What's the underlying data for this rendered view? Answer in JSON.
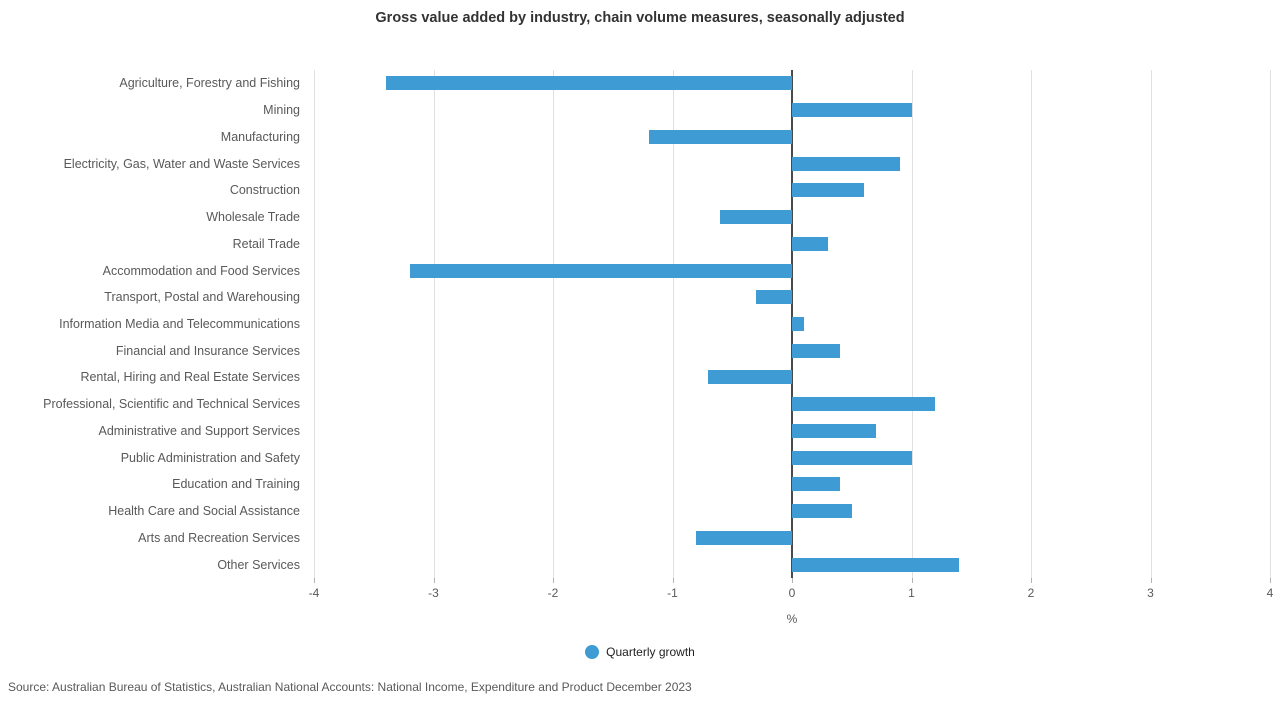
{
  "chart_data": {
    "type": "bar",
    "orientation": "horizontal",
    "title": "Gross value added by industry, chain volume measures, seasonally adjusted",
    "xlabel": "%",
    "xlim": [
      -4,
      4
    ],
    "xticks": [
      -4,
      -3,
      -2,
      -1,
      0,
      1,
      2,
      3,
      4
    ],
    "grid": "vertical",
    "legend_position": "bottom",
    "bar_color": "#3e9bd3",
    "series_name": "Quarterly growth",
    "categories": [
      "Agriculture, Forestry and Fishing",
      "Mining",
      "Manufacturing",
      "Electricity, Gas, Water and Waste Services",
      "Construction",
      "Wholesale Trade",
      "Retail Trade",
      "Accommodation and Food Services",
      "Transport, Postal and Warehousing",
      "Information Media and Telecommunications",
      "Financial and Insurance Services",
      "Rental, Hiring and Real Estate Services",
      "Professional, Scientific and Technical Services",
      "Administrative and Support Services",
      "Public Administration and Safety",
      "Education and Training",
      "Health Care and Social Assistance",
      "Arts and Recreation Services",
      "Other Services"
    ],
    "values": [
      -3.4,
      1.0,
      -1.2,
      0.9,
      0.6,
      -0.6,
      0.3,
      -3.2,
      -0.3,
      0.1,
      0.4,
      -0.7,
      1.2,
      0.7,
      1.0,
      0.4,
      0.5,
      -0.8,
      1.4
    ]
  },
  "legend": {
    "label": "Quarterly growth"
  },
  "source": "Source: Australian Bureau of Statistics, Australian National Accounts: National Income, Expenditure and Product December 2023"
}
